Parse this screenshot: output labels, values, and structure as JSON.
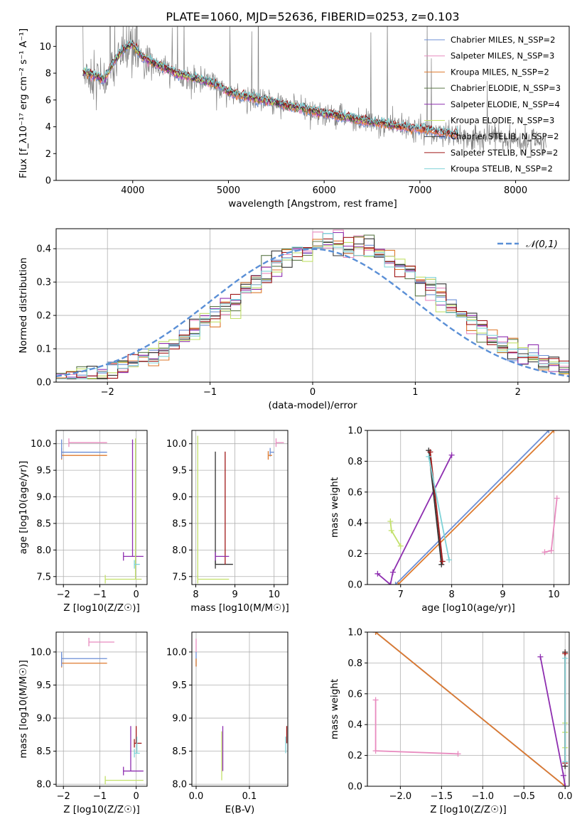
{
  "figure_title": "PLATE=1060, MJD=52636, FIBERID=0253, z=0.103",
  "colors": {
    "chabrier_miles": "#6c8fd6",
    "salpeter_miles": "#e88bbf",
    "kroupa_miles": "#de7a2e",
    "chabrier_elodie": "#5d7a4a",
    "salpeter_elodie": "#8e2eb0",
    "kroupa_elodie": "#c2e06a",
    "chabrier_stelib": "#333333",
    "salpeter_stelib": "#a01818",
    "kroupa_stelib": "#7fd3d8",
    "data": "#808080",
    "normal": "#5a8fd6"
  },
  "chart_data": [
    {
      "id": "spectrum",
      "type": "line",
      "title": "PLATE=1060, MJD=52636, FIBERID=0253, z=0.103",
      "xlabel": "wavelength [Angstrom, rest frame]",
      "ylabel": "Flux [f_λ10⁻¹⁷ erg cm⁻² s⁻¹ A⁻¹]",
      "xlim": [
        3200,
        8560
      ],
      "ylim": [
        0,
        11.5
      ],
      "xticks": [
        4000,
        5000,
        6000,
        7000,
        8000
      ],
      "yticks": [
        0,
        2,
        4,
        6,
        8,
        10
      ],
      "grid": false,
      "legend_position": "top-right",
      "legend": [
        "Chabrier MILES, N_SSP=2",
        "Salpeter MILES, N_SSP=3",
        "Kroupa MILES, N_SSP=2",
        "Chabrier ELODIE, N_SSP=3",
        "Salpeter ELODIE, N_SSP=4",
        "Kroupa ELODIE, N_SSP=3",
        "Chabrier STELIB, N_SSP=2",
        "Salpeter STELIB, N_SSP=2",
        "Kroupa STELIB, N_SSP=2"
      ],
      "data_trend": {
        "x": [
          3480,
          3600,
          3700,
          3800,
          3900,
          4000,
          4100,
          4300,
          4500,
          4700,
          4900,
          5000,
          5200,
          5400,
          5600,
          5800,
          6000,
          6200,
          6400,
          6600,
          6800,
          7000,
          7200,
          7400,
          7600,
          7800,
          8000,
          8200,
          8320
        ],
        "y": [
          8.0,
          7.7,
          7.4,
          8.7,
          9.6,
          10.0,
          9.1,
          8.4,
          7.8,
          7.5,
          7.1,
          6.5,
          6.2,
          5.9,
          5.6,
          5.3,
          5.0,
          4.7,
          4.4,
          4.2,
          4.0,
          3.8,
          3.5,
          3.3,
          3.2,
          3.1,
          3.0,
          2.9,
          2.8
        ]
      },
      "model_trend": {
        "x": [
          3480,
          3600,
          3700,
          3800,
          3900,
          4000,
          4100,
          4300,
          4500,
          4700,
          4900,
          5000,
          5200,
          5400,
          5600,
          5800,
          6000,
          6200,
          6400,
          6600,
          6800,
          7000,
          7200,
          7400
        ],
        "y": [
          8.1,
          7.8,
          7.5,
          8.8,
          9.8,
          10.1,
          9.2,
          8.5,
          7.9,
          7.5,
          7.1,
          6.6,
          6.25,
          5.95,
          5.6,
          5.3,
          5.0,
          4.75,
          4.45,
          4.25,
          4.0,
          3.85,
          3.6,
          3.4
        ]
      }
    },
    {
      "id": "residuals",
      "type": "histogram",
      "xlabel": "(data-model)/error",
      "ylabel": "Normed distribution",
      "xlim": [
        -2.5,
        2.5
      ],
      "ylim": [
        0,
        0.46
      ],
      "xticks": [
        -2,
        -1,
        0,
        1,
        2
      ],
      "yticks": [
        0.0,
        0.1,
        0.2,
        0.3,
        0.4
      ],
      "grid": true,
      "legend_position": "top-right",
      "legend": [
        "𝒩(0,1)"
      ],
      "bin_width": 0.1,
      "normal_curve": {
        "mean": 0,
        "sigma": 1
      }
    },
    {
      "id": "age_vs_z",
      "type": "errorbar",
      "xlabel": "Z [log10(Z/Z☉)]",
      "ylabel": "age  [log10(age/yr)]",
      "xlim": [
        -2.2,
        0.3
      ],
      "ylim": [
        7.35,
        10.25
      ],
      "xticks": [
        -2,
        -1,
        0
      ],
      "yticks": [
        7.5,
        8.0,
        8.5,
        9.0,
        9.5,
        10.0
      ],
      "grid": true,
      "points": [
        {
          "model": "chabrier_miles",
          "x": [
            -2.05,
            -0.8
          ],
          "y": 9.84,
          "xerr": true
        },
        {
          "model": "kroupa_miles",
          "x": [
            -2.05,
            -0.8
          ],
          "y": 9.78,
          "xerr": true
        },
        {
          "model": "salpeter_miles",
          "x": [
            -1.85,
            -0.8
          ],
          "y": 10.02,
          "xerr": true
        },
        {
          "model": "salpeter_elodie",
          "x": [
            -0.35,
            0.2
          ],
          "y": 7.88,
          "xerr": true
        },
        {
          "model": "salpeter_elodie",
          "x": -0.1,
          "y": [
            7.88,
            10.08
          ],
          "yerr": true
        },
        {
          "model": "kroupa_elodie",
          "x": [
            -0.85,
            0.15
          ],
          "y": 7.45,
          "xerr": true
        },
        {
          "model": "kroupa_elodie",
          "x": -0.02,
          "y": [
            7.45,
            10.1
          ],
          "yerr": true
        },
        {
          "model": "kroupa_stelib",
          "x": [
            -0.05,
            0.1
          ],
          "y": 7.73,
          "xerr": true
        },
        {
          "model": "chabrier_miles",
          "x": -2.05,
          "y": [
            9.72,
            10.08
          ],
          "yerr": true
        }
      ]
    },
    {
      "id": "age_vs_mass",
      "type": "errorbar",
      "xlabel": "mass [log10(M/M☉)]",
      "ylabel": "",
      "xlim": [
        7.9,
        10.35
      ],
      "ylim": [
        7.35,
        10.25
      ],
      "xticks": [
        8,
        9,
        10
      ],
      "yticks": [
        7.5,
        8.0,
        8.5,
        9.0,
        9.5,
        10.0
      ],
      "grid": true,
      "points": [
        {
          "model": "kroupa_elodie",
          "x": [
            8.05,
            8.85
          ],
          "y": 7.45,
          "xerr": true
        },
        {
          "model": "kroupa_elodie",
          "x": 8.05,
          "y": [
            7.45,
            10.15
          ],
          "yerr": true
        },
        {
          "model": "chabrier_stelib",
          "x": [
            8.5,
            8.95
          ],
          "y": 7.73,
          "xerr": true
        },
        {
          "model": "chabrier_stelib",
          "x": 8.5,
          "y": [
            7.73,
            9.85
          ],
          "yerr": true
        },
        {
          "model": "salpeter_stelib",
          "x": 8.75,
          "y": [
            7.73,
            9.85
          ],
          "yerr": true
        },
        {
          "model": "salpeter_elodie",
          "x": [
            8.5,
            8.85
          ],
          "y": 7.88,
          "xerr": true
        },
        {
          "model": "chabrier_miles",
          "x": [
            9.9,
            10.0
          ],
          "y": 9.84,
          "xerr": true
        },
        {
          "model": "kroupa_miles",
          "x": [
            9.85,
            9.95
          ],
          "y": 9.78,
          "xerr": true
        },
        {
          "model": "salpeter_miles",
          "x": [
            10.05,
            10.25
          ],
          "y": 10.02,
          "xerr": true
        }
      ]
    },
    {
      "id": "weight_vs_age",
      "type": "line",
      "xlabel": "age  [log10(age/yr)]",
      "ylabel": "mass weight",
      "xlim": [
        6.35,
        10.3
      ],
      "ylim": [
        0,
        1.0
      ],
      "xticks": [
        7,
        8,
        9,
        10
      ],
      "yticks": [
        0.0,
        0.2,
        0.4,
        0.6,
        0.8,
        1.0
      ],
      "grid": true,
      "series": [
        {
          "model": "chabrier_miles",
          "x": [
            6.9,
            9.9
          ],
          "y": [
            0.0,
            1.0
          ]
        },
        {
          "model": "kroupa_miles",
          "x": [
            6.95,
            10.0
          ],
          "y": [
            0.0,
            1.0
          ]
        },
        {
          "model": "salpeter_miles",
          "x": [
            9.82,
            9.95,
            10.06
          ],
          "y": [
            0.21,
            0.22,
            0.56
          ]
        },
        {
          "model": "salpeter_elodie",
          "x": [
            6.55,
            6.8,
            6.85,
            8.0
          ],
          "y": [
            0.07,
            0.0,
            0.08,
            0.84
          ]
        },
        {
          "model": "kroupa_elodie",
          "x": [
            6.8,
            6.82,
            7.0
          ],
          "y": [
            0.41,
            0.35,
            0.25
          ]
        },
        {
          "model": "chabrier_stelib",
          "x": [
            7.55,
            7.8
          ],
          "y": [
            0.87,
            0.13
          ]
        },
        {
          "model": "salpeter_stelib",
          "x": [
            7.58,
            7.82
          ],
          "y": [
            0.86,
            0.15
          ]
        },
        {
          "model": "kroupa_stelib",
          "x": [
            7.55,
            7.95
          ],
          "y": [
            0.83,
            0.16
          ]
        }
      ]
    },
    {
      "id": "mass_vs_z",
      "type": "errorbar",
      "xlabel": "Z [log10(Z/Z☉)]",
      "ylabel": "mass [log10(M/M☉)]",
      "xlim": [
        -2.2,
        0.3
      ],
      "ylim": [
        7.97,
        10.3
      ],
      "xticks": [
        -2,
        -1,
        0
      ],
      "yticks": [
        8.0,
        8.5,
        9.0,
        9.5,
        10.0
      ],
      "grid": true,
      "points": [
        {
          "model": "salpeter_miles",
          "x": [
            -1.3,
            -0.6
          ],
          "y": 10.15,
          "xerr": true
        },
        {
          "model": "chabrier_miles",
          "x": [
            -2.05,
            -0.8
          ],
          "y": 9.9,
          "xerr": true
        },
        {
          "model": "kroupa_miles",
          "x": [
            -2.05,
            -0.8
          ],
          "y": 9.83,
          "xerr": true
        },
        {
          "model": "salpeter_elodie",
          "x": [
            -0.35,
            0.2
          ],
          "y": 8.2,
          "xerr": true
        },
        {
          "model": "salpeter_elodie",
          "x": -0.15,
          "y": [
            8.2,
            8.88
          ],
          "yerr": true
        },
        {
          "model": "kroupa_elodie",
          "x": [
            -0.85,
            0.2
          ],
          "y": 8.06,
          "xerr": true
        },
        {
          "model": "salpeter_stelib",
          "x": [
            -0.05,
            0.15
          ],
          "y": 8.62,
          "xerr": true
        },
        {
          "model": "salpeter_stelib",
          "x": 0.0,
          "y": [
            8.62,
            8.88
          ],
          "yerr": true
        },
        {
          "model": "kroupa_stelib",
          "x": [
            -0.05,
            0.1
          ],
          "y": 8.47,
          "xerr": true
        },
        {
          "model": "kroupa_stelib",
          "x": 0.02,
          "y": [
            8.47,
            8.72
          ],
          "yerr": true
        },
        {
          "model": "chabrier_miles",
          "x": -2.05,
          "y": [
            9.78,
            10.0
          ],
          "yerr": true
        }
      ]
    },
    {
      "id": "mass_vs_ebv",
      "type": "errorbar",
      "xlabel": "E(B-V)",
      "ylabel": "",
      "xlim": [
        -0.008,
        0.172
      ],
      "ylim": [
        7.97,
        10.3
      ],
      "xticks": [
        0.0,
        0.1
      ],
      "yticks": [
        8.0,
        8.5,
        9.0,
        9.5,
        10.0
      ],
      "grid": true,
      "points": [
        {
          "model": "salpeter_miles",
          "x": 0.0,
          "y": [
            10.0,
            10.2
          ],
          "yerr": true
        },
        {
          "model": "chabrier_miles",
          "x": 0.0,
          "y": [
            9.78,
            10.0
          ],
          "yerr": true
        },
        {
          "model": "kroupa_miles",
          "x": 0.0,
          "y": [
            9.78,
            9.9
          ],
          "yerr": true
        },
        {
          "model": "kroupa_elodie",
          "x": 0.048,
          "y": [
            8.06,
            8.8
          ],
          "yerr": true
        },
        {
          "model": "salpeter_elodie",
          "x": 0.05,
          "y": [
            8.2,
            8.88
          ],
          "yerr": true
        },
        {
          "model": "salpeter_stelib",
          "x": 0.17,
          "y": [
            8.62,
            8.88
          ],
          "yerr": true
        },
        {
          "model": "kroupa_stelib",
          "x": 0.168,
          "y": [
            8.47,
            8.72
          ],
          "yerr": true
        }
      ]
    },
    {
      "id": "weight_vs_z",
      "type": "line",
      "xlabel": "Z [log10(Z/Z☉)]",
      "ylabel": "mass weight",
      "xlim": [
        -2.4,
        0.05
      ],
      "ylim": [
        0,
        1.0
      ],
      "xticks": [
        -2.0,
        -1.5,
        -1.0,
        -0.5,
        0.0
      ],
      "yticks": [
        0.0,
        0.2,
        0.4,
        0.6,
        0.8,
        1.0
      ],
      "grid": true,
      "series": [
        {
          "model": "chabrier_miles",
          "x": [
            -2.3,
            0.0
          ],
          "y": [
            1.0,
            0.0
          ]
        },
        {
          "model": "kroupa_miles",
          "x": [
            -2.3,
            0.0
          ],
          "y": [
            1.0,
            0.0
          ]
        },
        {
          "model": "salpeter_miles",
          "x": [
            -2.3,
            -2.3,
            -1.3
          ],
          "y": [
            0.56,
            0.23,
            0.21
          ]
        },
        {
          "model": "salpeter_elodie",
          "x": [
            -0.3,
            -0.02,
            0.0
          ],
          "y": [
            0.84,
            0.07,
            0.0
          ]
        },
        {
          "model": "kroupa_elodie",
          "x": [
            0.0,
            0.0,
            0.0
          ],
          "y": [
            0.41,
            0.35,
            0.25
          ]
        },
        {
          "model": "chabrier_stelib",
          "x": [
            0.0,
            0.0
          ],
          "y": [
            0.87,
            0.13
          ]
        },
        {
          "model": "salpeter_stelib",
          "x": [
            0.0,
            0.0
          ],
          "y": [
            0.86,
            0.15
          ]
        },
        {
          "model": "kroupa_stelib",
          "x": [
            0.0,
            0.0
          ],
          "y": [
            0.83,
            0.16
          ]
        }
      ]
    }
  ]
}
